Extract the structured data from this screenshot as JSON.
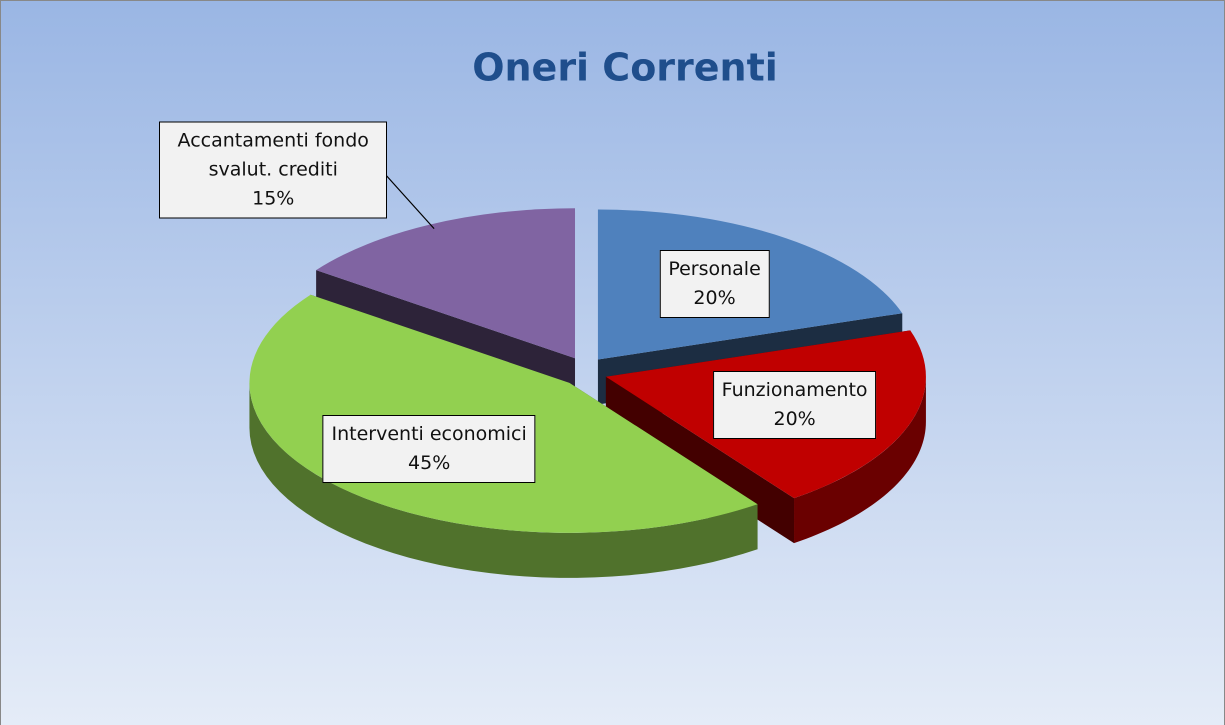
{
  "chart_data": {
    "type": "pie3d",
    "title": "Oneri Correnti",
    "categories": [
      "Personale",
      "Funzionamento",
      "Interventi economici",
      "Accantamenti fondo svalut. crediti"
    ],
    "values": [
      20,
      20,
      45,
      15
    ],
    "value_labels": [
      "20%",
      "20%",
      "45%",
      "15%"
    ],
    "colors": [
      "#4f81bd",
      "#c00000",
      "#92d050",
      "#8064a2"
    ]
  }
}
